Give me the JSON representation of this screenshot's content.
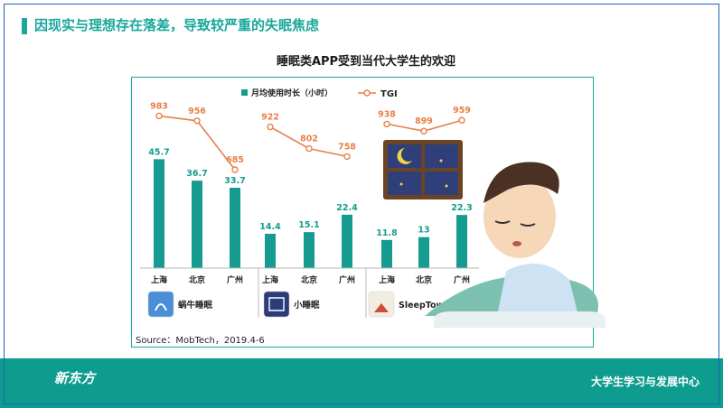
{
  "header": {
    "title": "因现实与理想存在落差，导致较严重的失眠焦虑"
  },
  "chart_data": {
    "type": "bar",
    "title": "睡眠类APP受到当代大学生的欢迎",
    "legend": [
      {
        "name": "月均使用时长（小时）",
        "color": "#169b90"
      },
      {
        "name": "TGI",
        "color": "#e8804a"
      }
    ],
    "legend_position": "top",
    "groups": [
      {
        "app": "蜗牛睡眠",
        "cities": [
          "上海",
          "北京",
          "广州"
        ],
        "hours": [
          45.7,
          36.7,
          33.7
        ],
        "tgi": [
          983,
          956,
          685
        ]
      },
      {
        "app": "小睡眠",
        "cities": [
          "上海",
          "北京",
          "广州"
        ],
        "hours": [
          14.4,
          15.1,
          22.4
        ],
        "tgi": [
          922,
          802,
          758
        ]
      },
      {
        "app": "SleepTown",
        "cities": [
          "上海",
          "北京",
          "广州"
        ],
        "hours": [
          11.8,
          13.0,
          22.3
        ],
        "tgi": [
          938,
          899,
          959
        ]
      }
    ],
    "grid": false
  },
  "source": "Source：MobTech，2019.4-6",
  "footer": {
    "org": "大学生学习与发展中心",
    "logo": "新东方"
  },
  "colors": {
    "accent": "#1aa89a",
    "bar": "#169b90",
    "line": "#e8804a",
    "footer": "#0e9c8e"
  }
}
